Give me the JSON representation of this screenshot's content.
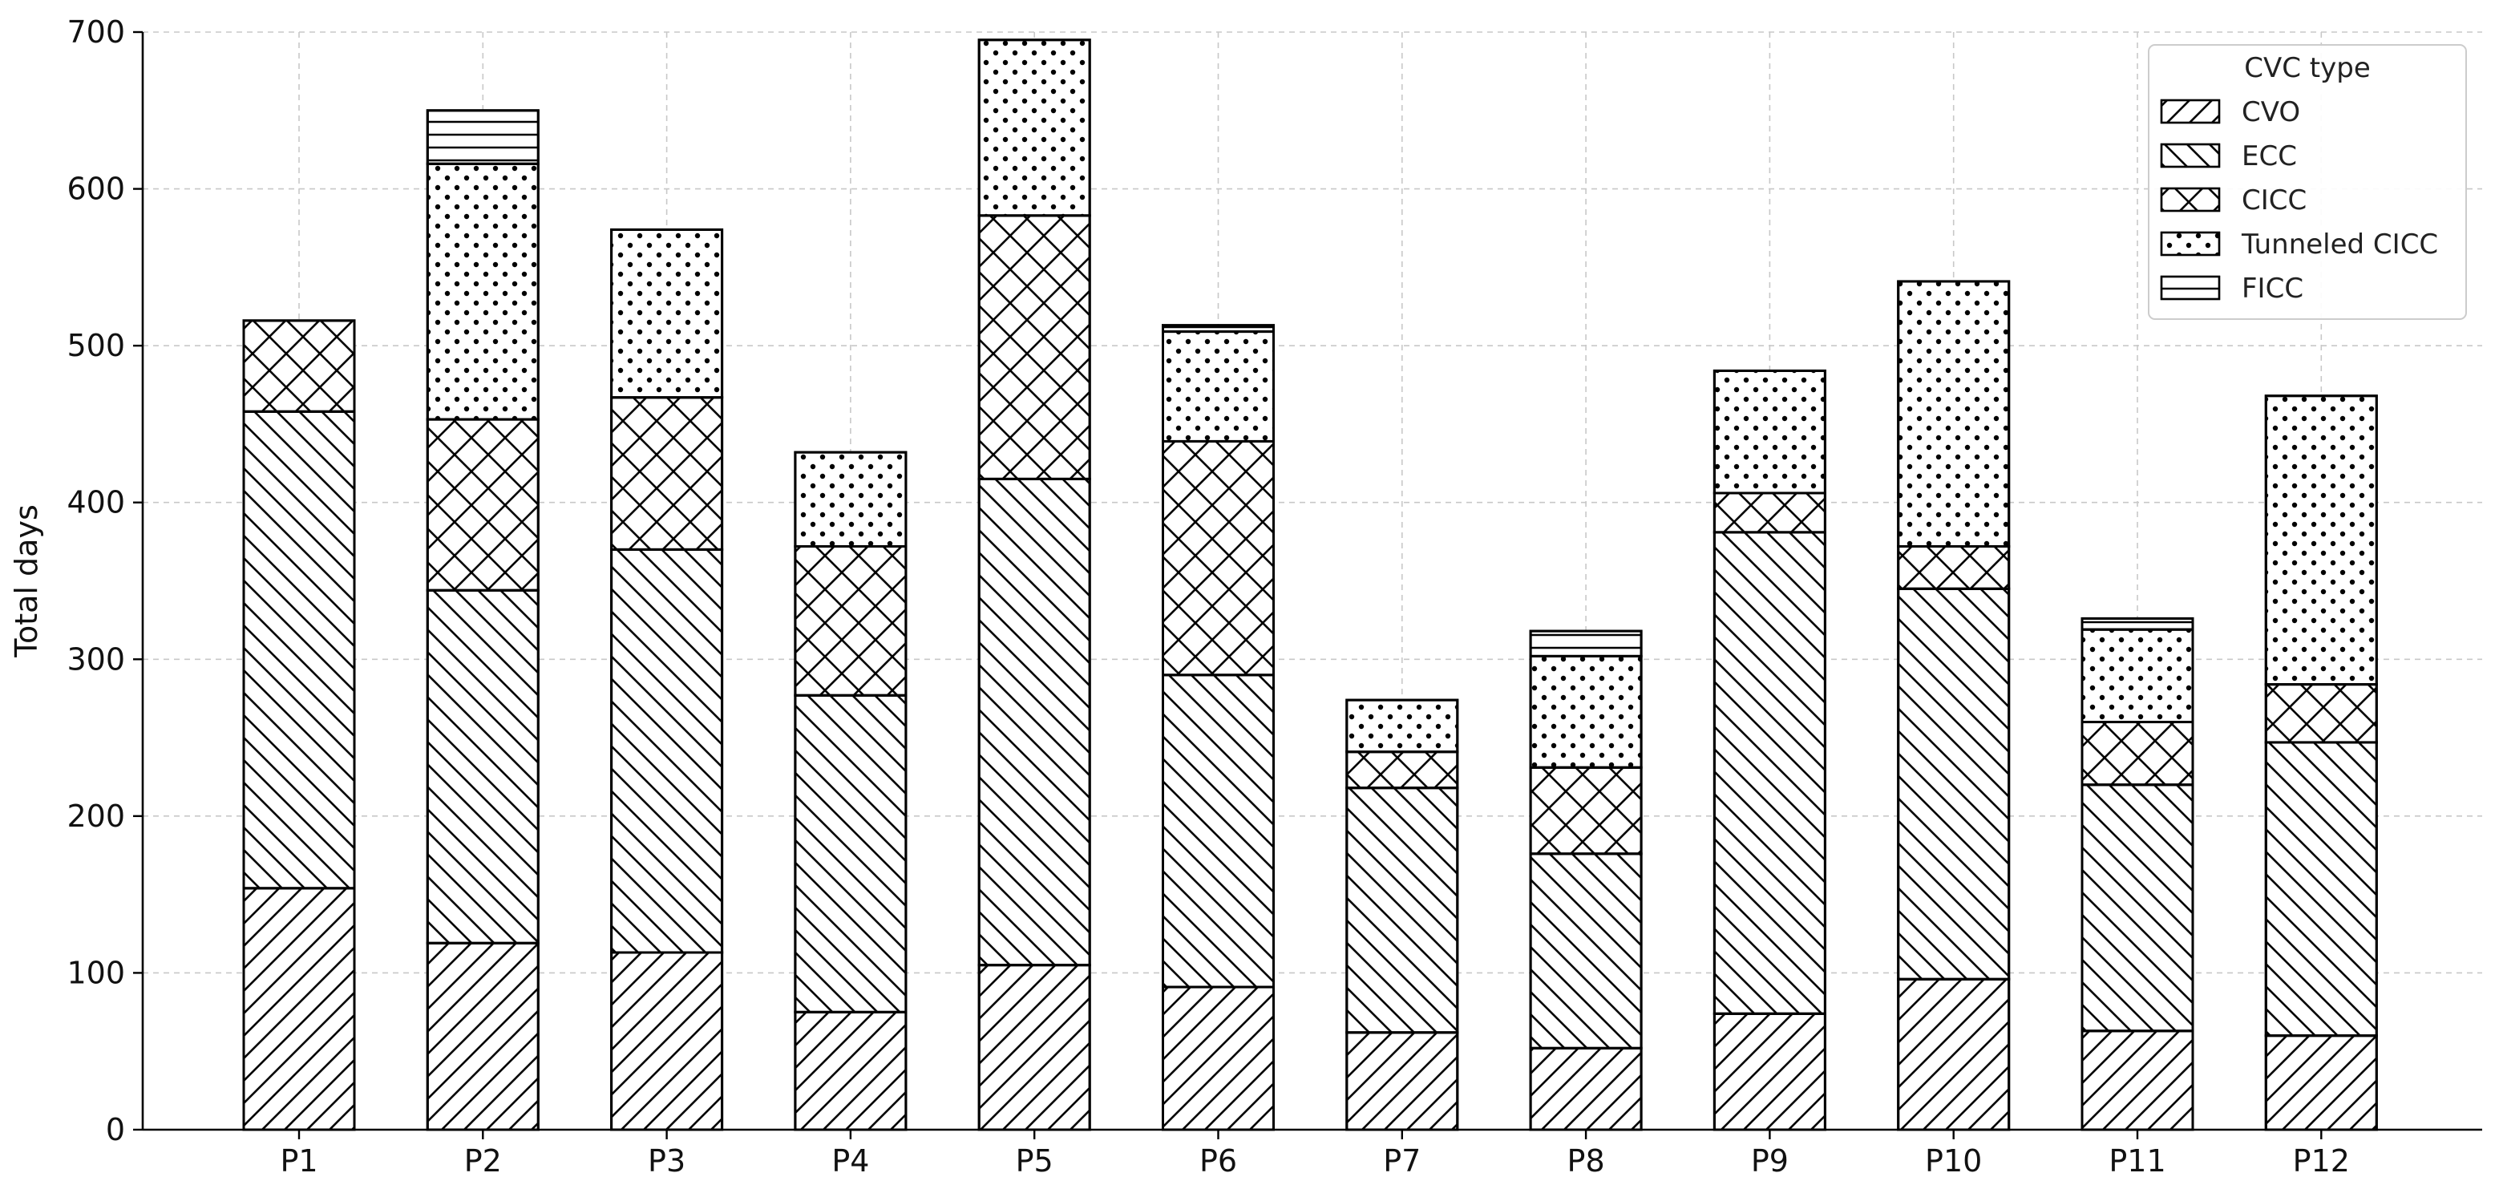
{
  "chart_data": {
    "type": "bar",
    "stacked": true,
    "title": "",
    "xlabel": "",
    "ylabel": "Total days",
    "ylim": [
      0,
      700
    ],
    "yticks": [
      0,
      100,
      200,
      300,
      400,
      500,
      600,
      700
    ],
    "grid": true,
    "legend": {
      "title": "CVC type",
      "placement": "top-right"
    },
    "categories": [
      "P1",
      "P2",
      "P3",
      "P4",
      "P5",
      "P6",
      "P7",
      "P8",
      "P9",
      "P10",
      "P11",
      "P12"
    ],
    "series": [
      {
        "name": "CVO",
        "pattern": "diagonal-forward",
        "values": [
          154,
          119,
          113,
          75,
          105,
          91,
          62,
          52,
          74,
          96,
          63,
          60
        ]
      },
      {
        "name": "ECC",
        "pattern": "diagonal-backward",
        "values": [
          304,
          225,
          257,
          202,
          310,
          199,
          156,
          124,
          307,
          249,
          157,
          187
        ]
      },
      {
        "name": "CICC",
        "pattern": "cross-hatch",
        "values": [
          58,
          109,
          97,
          95,
          168,
          149,
          23,
          55,
          25,
          27,
          40,
          37
        ]
      },
      {
        "name": "Tunneled CICC",
        "pattern": "dots",
        "values": [
          0,
          163,
          107,
          60,
          112,
          70,
          33,
          71,
          78,
          169,
          59,
          184
        ]
      },
      {
        "name": "FICC",
        "pattern": "horizontal-lines",
        "values": [
          0,
          34,
          0,
          0,
          0,
          4,
          0,
          16,
          0,
          0,
          7,
          0
        ]
      }
    ],
    "colors": {
      "fill": "#ffffff",
      "stroke": "#000000",
      "grid": "#c8c8c8"
    }
  }
}
